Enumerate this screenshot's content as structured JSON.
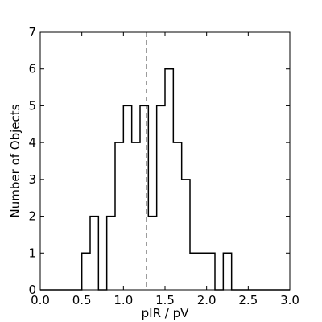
{
  "chart_data": {
    "type": "histogram",
    "title": "",
    "xlabel": "pIR / pV",
    "ylabel": "Number of Objects",
    "xlim": [
      0.0,
      3.0
    ],
    "ylim": [
      0,
      7
    ],
    "xticks": [
      "0.0",
      "0.5",
      "1.0",
      "1.5",
      "2.0",
      "2.5",
      "3.0"
    ],
    "yticks": [
      "0",
      "1",
      "2",
      "3",
      "4",
      "5",
      "6",
      "7"
    ],
    "grid": false,
    "style": "step",
    "bin_width": 0.1,
    "bin_starts": [
      0.0,
      0.1,
      0.2,
      0.3,
      0.4,
      0.5,
      0.6,
      0.7,
      0.8,
      0.9,
      1.0,
      1.1,
      1.2,
      1.3,
      1.4,
      1.5,
      1.6,
      1.7,
      1.8,
      1.9,
      2.0,
      2.1,
      2.2,
      2.3,
      2.4,
      2.5,
      2.6,
      2.7,
      2.8,
      2.9
    ],
    "counts": [
      0,
      0,
      0,
      0,
      0,
      1,
      2,
      0,
      2,
      4,
      5,
      4,
      5,
      2,
      5,
      6,
      4,
      3,
      1,
      1,
      1,
      0,
      1,
      0,
      0,
      0,
      0,
      0,
      0,
      0
    ],
    "reference_line": {
      "x": 1.28,
      "style": "dashed"
    }
  }
}
